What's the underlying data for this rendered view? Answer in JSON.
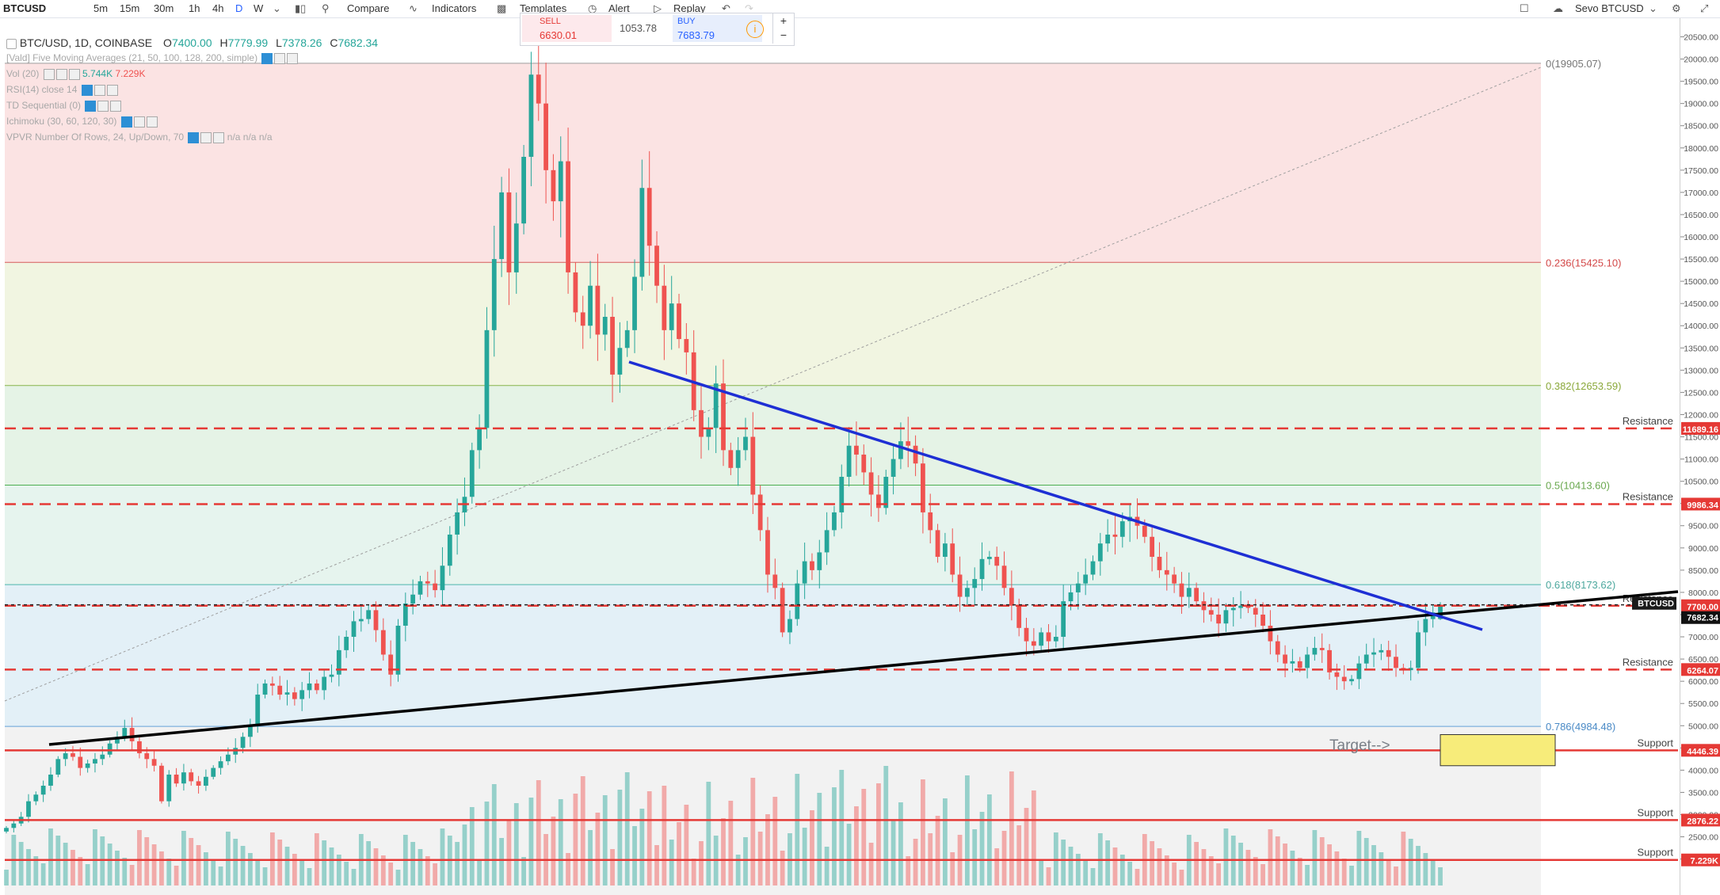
{
  "toolbar": {
    "symbol": "BTCUSD",
    "intervals": [
      "5m",
      "15m",
      "30m",
      "1h",
      "4h",
      "D",
      "W"
    ],
    "compare": "Compare",
    "indicators": "Indicators",
    "templates": "Templates",
    "alert": "Alert",
    "replay": "Replay",
    "account": "Sevo BTCUSD"
  },
  "trade": {
    "sell_label": "SELL",
    "sell_price": "6630.01",
    "spread": "1053.78",
    "buy_label": "BUY",
    "buy_price": "7683.79"
  },
  "legend": {
    "symbol": "BTC/USD, 1D, COINBASE",
    "open": "7400.00",
    "high": "7779.99",
    "low": "7378.26",
    "close": "7682.34",
    "ma": "[Vald] Five Moving Averages (21, 50, 100, 128, 200, simple)",
    "vol": "Vol (20)",
    "vol_a": "5.744K",
    "vol_b": "7.229K",
    "ind1": "RSI(14) close 14",
    "ind2": "TD Sequential (0)",
    "ind3": "Ichimoku (30, 60, 120, 30)",
    "ind4": "VPVR Number Of Rows, 24, Up/Down, 70",
    "na": "n/a  n/a  n/a"
  },
  "colors": {
    "up": "#26a69a",
    "down": "#ef5350",
    "resistance": "#e53935",
    "trend_blue": "#1e2fd4",
    "trend_black": "#000000",
    "target_fill": "#f7ec7a"
  },
  "chart_data": {
    "type": "candlestick",
    "symbol": "BTC/USD",
    "timeframe": "1D",
    "exchange": "COINBASE",
    "ylim": [
      1300,
      20650
    ],
    "y_ticks": [
      2000,
      2500,
      3000,
      3500,
      4000,
      4500,
      5000,
      5500,
      6000,
      6500,
      7000,
      7500,
      8000,
      8500,
      9000,
      9500,
      10000,
      10500,
      11000,
      11500,
      12000,
      12500,
      13000,
      13500,
      14000,
      14500,
      15000,
      15500,
      16000,
      16500,
      17000,
      17500,
      18000,
      18500,
      19000,
      19500,
      20000,
      20500
    ],
    "last_price": 7682.34,
    "last_ohlc": {
      "open": 7400.0,
      "high": 7779.99,
      "low": 7378.26,
      "close": 7682.34
    },
    "fibonacci": [
      {
        "label": "0(19905.07)",
        "value": 19905.07
      },
      {
        "label": "0.236(15425.10)",
        "value": 15425.1
      },
      {
        "label": "0.382(12653.59)",
        "value": 12653.59
      },
      {
        "label": "0.5(10413.60)",
        "value": 10413.6
      },
      {
        "label": "0.618(8173.62)",
        "value": 8173.62
      },
      {
        "label": "0.786(4984.48)",
        "value": 4984.48
      }
    ],
    "levels": [
      {
        "label": "Resistance",
        "value": 11689.16,
        "tag": "11689.16"
      },
      {
        "label": "Resistance",
        "value": 9986.34,
        "tag": "9986.34"
      },
      {
        "label": "Resistance",
        "value": 7700.0,
        "tag": "7700.00"
      },
      {
        "label": "Resistance",
        "value": 6264.07,
        "tag": "6264.07"
      },
      {
        "label": "Support",
        "value": 4446.39,
        "tag": "4446.39"
      },
      {
        "label": "Support",
        "value": 2876.22,
        "tag": "2876.22"
      },
      {
        "label": "Support",
        "value": 1980,
        "tag": "7.229K"
      }
    ],
    "symbol_tag": "BTCUSD",
    "target_label": "Target-->",
    "target_zone": [
      4100,
      4800
    ],
    "closes": [
      2700,
      2800,
      2950,
      3300,
      3450,
      3650,
      3900,
      4250,
      4380,
      4300,
      4050,
      4150,
      4250,
      4350,
      4600,
      4750,
      4950,
      4650,
      4380,
      4250,
      4100,
      3300,
      3900,
      3700,
      3950,
      3750,
      3650,
      3850,
      4050,
      4200,
      4350,
      4500,
      4750,
      5000,
      5700,
      5950,
      5900,
      5700,
      5750,
      5600,
      5800,
      5950,
      5800,
      6100,
      6150,
      6700,
      7000,
      7350,
      7400,
      7600,
      7150,
      6600,
      6150,
      7250,
      7750,
      7950,
      8250,
      8200,
      8050,
      8600,
      9300,
      9800,
      10150,
      11200,
      11700,
      13900,
      15500,
      17000,
      15200,
      16300,
      17800,
      19650,
      19000,
      17500,
      16800,
      17700,
      15200,
      14300,
      14000,
      14900,
      13800,
      14200,
      12900,
      13500,
      13900,
      15100,
      17100,
      15800,
      14900,
      13900,
      14500,
      13700,
      13400,
      12100,
      11500,
      11700,
      12700,
      11200,
      10800,
      11200,
      11500,
      10200,
      9400,
      8400,
      8100,
      7100,
      7400,
      8200,
      8700,
      8500,
      8900,
      9400,
      9800,
      10600,
      11300,
      11100,
      10700,
      10200,
      9900,
      10600,
      11000,
      11400,
      11300,
      10900,
      9800,
      9400,
      8800,
      9100,
      8400,
      7900,
      8100,
      8300,
      8750,
      8800,
      8600,
      8100,
      7700,
      7200,
      6900,
      6800,
      7100,
      6900,
      7000,
      7800,
      8000,
      8200,
      8400,
      8700,
      9100,
      9300,
      9250,
      9600,
      9700,
      9500,
      9250,
      8800,
      8500,
      8400,
      8200,
      7900,
      8100,
      7800,
      7600,
      7500,
      7300,
      7600,
      7650,
      7700,
      7650,
      7500,
      7250,
      6900,
      6600,
      6400,
      6450,
      6300,
      6600,
      6750,
      6700,
      6200,
      6100,
      6000,
      6050,
      6400,
      6600,
      6650,
      6700,
      6550,
      6300,
      6250,
      6300,
      7100,
      7400,
      7550,
      7682.34
    ]
  }
}
